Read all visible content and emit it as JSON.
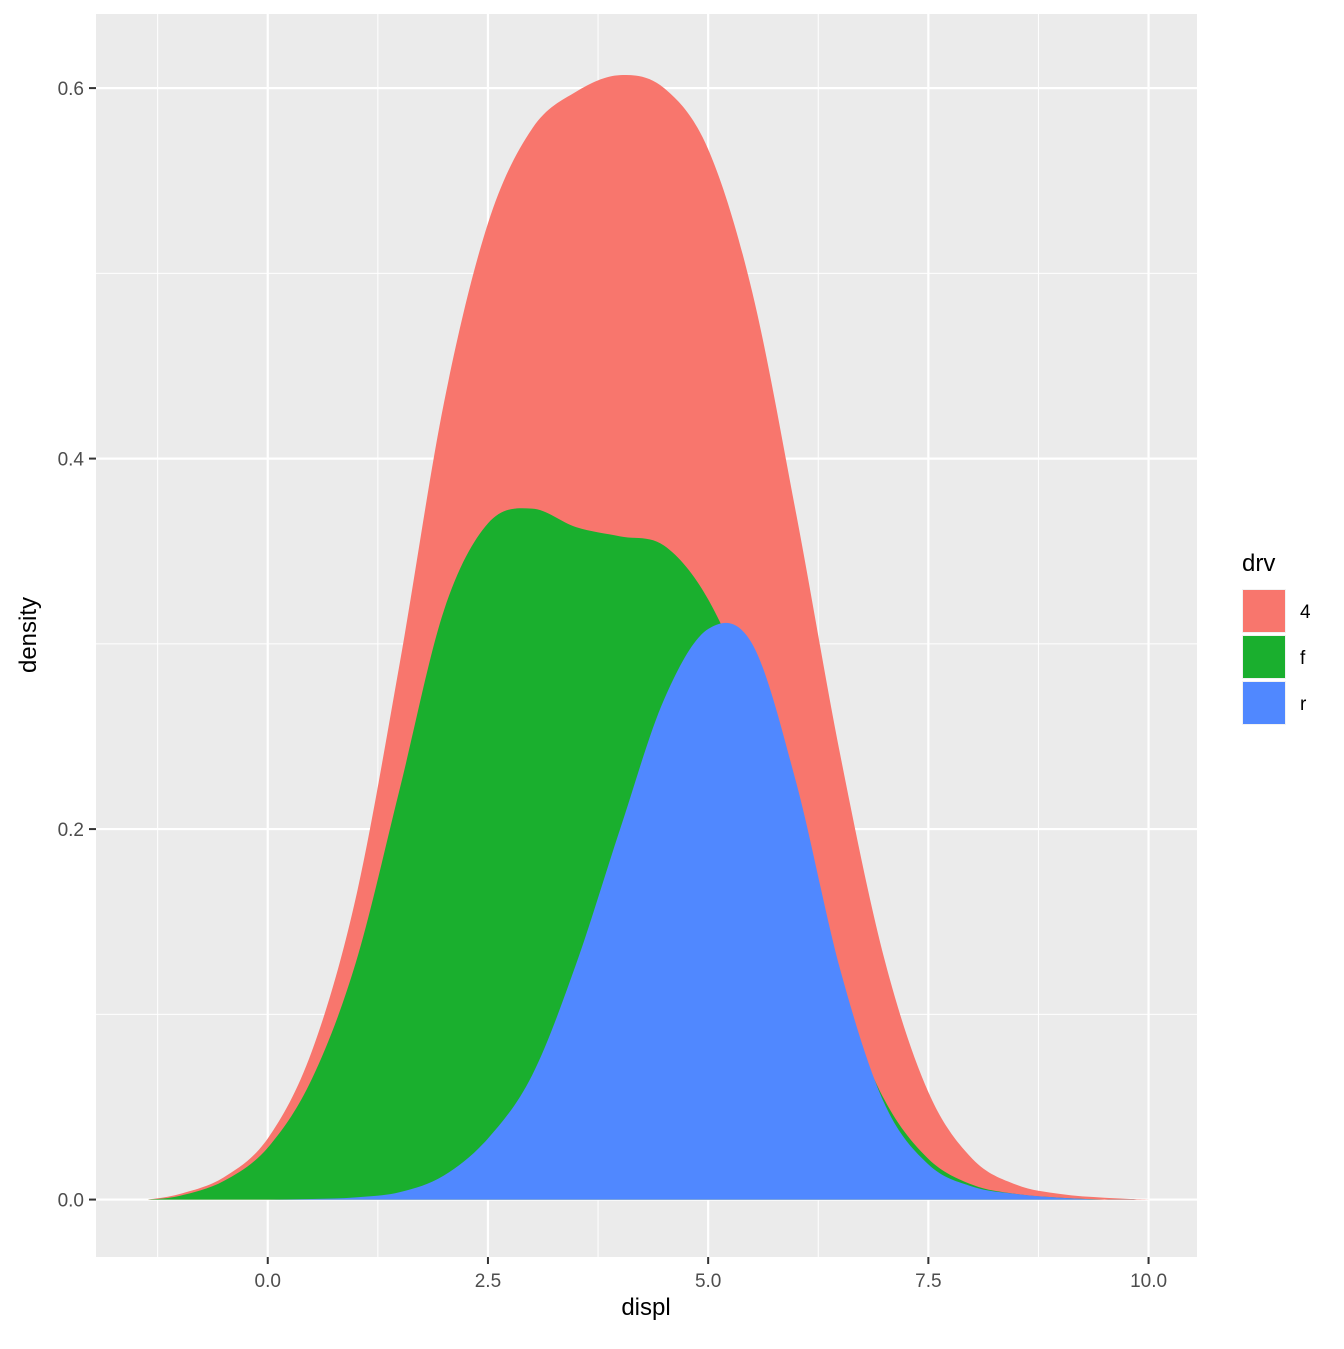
{
  "chart_data": {
    "type": "area",
    "stacked": true,
    "title": "",
    "xlabel": "displ",
    "ylabel": "density",
    "xlim": [
      -1.95,
      10.55
    ],
    "ylim": [
      -0.031,
      0.64
    ],
    "x_ticks": [
      0.0,
      2.5,
      5.0,
      7.5,
      10.0
    ],
    "x_tick_labels": [
      "0.0",
      "2.5",
      "5.0",
      "7.5",
      "10.0"
    ],
    "y_ticks": [
      0.0,
      0.2,
      0.4,
      0.6
    ],
    "y_tick_labels": [
      "0.0",
      "0.2",
      "0.4",
      "0.6"
    ],
    "grid": true,
    "legend": {
      "title": "drv",
      "position": "right"
    },
    "series_draw_order": [
      "4",
      "f",
      "r"
    ],
    "series": [
      {
        "name": "4",
        "color": "#F8766D",
        "x": [
          -1.36,
          -1.0,
          -0.5,
          0.0,
          0.5,
          1.0,
          1.5,
          2.0,
          2.5,
          3.0,
          3.5,
          4.0,
          4.5,
          5.0,
          5.5,
          6.0,
          6.5,
          7.0,
          7.5,
          8.0,
          8.5,
          9.0,
          9.5,
          10.0
        ],
        "cumulative_y": [
          0.0,
          0.003,
          0.012,
          0.033,
          0.08,
          0.163,
          0.29,
          0.43,
          0.527,
          0.578,
          0.598,
          0.607,
          0.6,
          0.567,
          0.49,
          0.37,
          0.24,
          0.13,
          0.058,
          0.022,
          0.008,
          0.003,
          0.001,
          0.0
        ]
      },
      {
        "name": "f",
        "color": "#1AAF2E",
        "x": [
          -1.36,
          -1.0,
          -0.5,
          0.0,
          0.5,
          1.0,
          1.5,
          2.0,
          2.5,
          3.0,
          3.5,
          4.0,
          4.5,
          5.0,
          5.5,
          6.0,
          6.5,
          7.0,
          7.5,
          8.0,
          8.5,
          9.0,
          9.5,
          10.0
        ],
        "cumulative_y": [
          0.0,
          0.002,
          0.01,
          0.028,
          0.065,
          0.128,
          0.222,
          0.318,
          0.365,
          0.373,
          0.363,
          0.358,
          0.353,
          0.324,
          0.269,
          0.19,
          0.112,
          0.054,
          0.022,
          0.008,
          0.003,
          0.001,
          0.0,
          0.0
        ]
      },
      {
        "name": "r",
        "color": "#5088FF",
        "x": [
          -1.36,
          -1.0,
          -0.5,
          0.0,
          0.5,
          1.0,
          1.5,
          2.0,
          2.5,
          3.0,
          3.5,
          4.0,
          4.5,
          5.0,
          5.5,
          6.0,
          6.5,
          7.0,
          7.5,
          8.0,
          8.5,
          9.0,
          9.5,
          10.0
        ],
        "cumulative_y": [
          0.0,
          0.0,
          0.0,
          0.0,
          0.0003,
          0.0012,
          0.004,
          0.013,
          0.033,
          0.067,
          0.127,
          0.2,
          0.27,
          0.308,
          0.3,
          0.225,
          0.124,
          0.052,
          0.019,
          0.007,
          0.003,
          0.001,
          0.0,
          0.0
        ]
      }
    ]
  }
}
